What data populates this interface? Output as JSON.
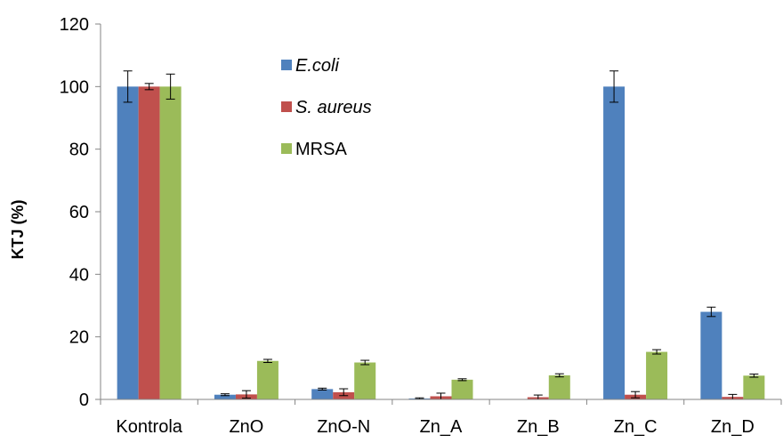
{
  "chart_data": {
    "type": "bar",
    "title": "",
    "xlabel": "",
    "ylabel": "KTJ (%)",
    "ylim": [
      0,
      120
    ],
    "yticks": [
      0,
      20,
      40,
      60,
      80,
      100,
      120
    ],
    "grid": false,
    "legend_position": "top-center",
    "categories": [
      "Kontrola",
      "ZnO",
      "ZnO-N",
      "Zn_A",
      "Zn_B",
      "Zn_C",
      "Zn_D"
    ],
    "series": [
      {
        "name": "E.coli",
        "italic": true,
        "color": "#4f81bd",
        "values": [
          100,
          1.5,
          3.3,
          0.3,
          0,
          100,
          28
        ],
        "errors": [
          5,
          0.3,
          0.3,
          0.2,
          0,
          5,
          1.5
        ]
      },
      {
        "name": "S. aureus",
        "italic": true,
        "color": "#c0504d",
        "values": [
          100,
          1.6,
          2.3,
          1.0,
          0.7,
          1.5,
          0.8
        ],
        "errors": [
          1,
          1.2,
          1.1,
          1.0,
          0.7,
          1.0,
          0.8
        ]
      },
      {
        "name": "MRSA",
        "italic": false,
        "color": "#9bbb59",
        "values": [
          100,
          12.3,
          11.8,
          6.3,
          7.7,
          15.2,
          7.6
        ],
        "errors": [
          4,
          0.5,
          0.7,
          0.3,
          0.5,
          0.7,
          0.5
        ]
      }
    ]
  }
}
